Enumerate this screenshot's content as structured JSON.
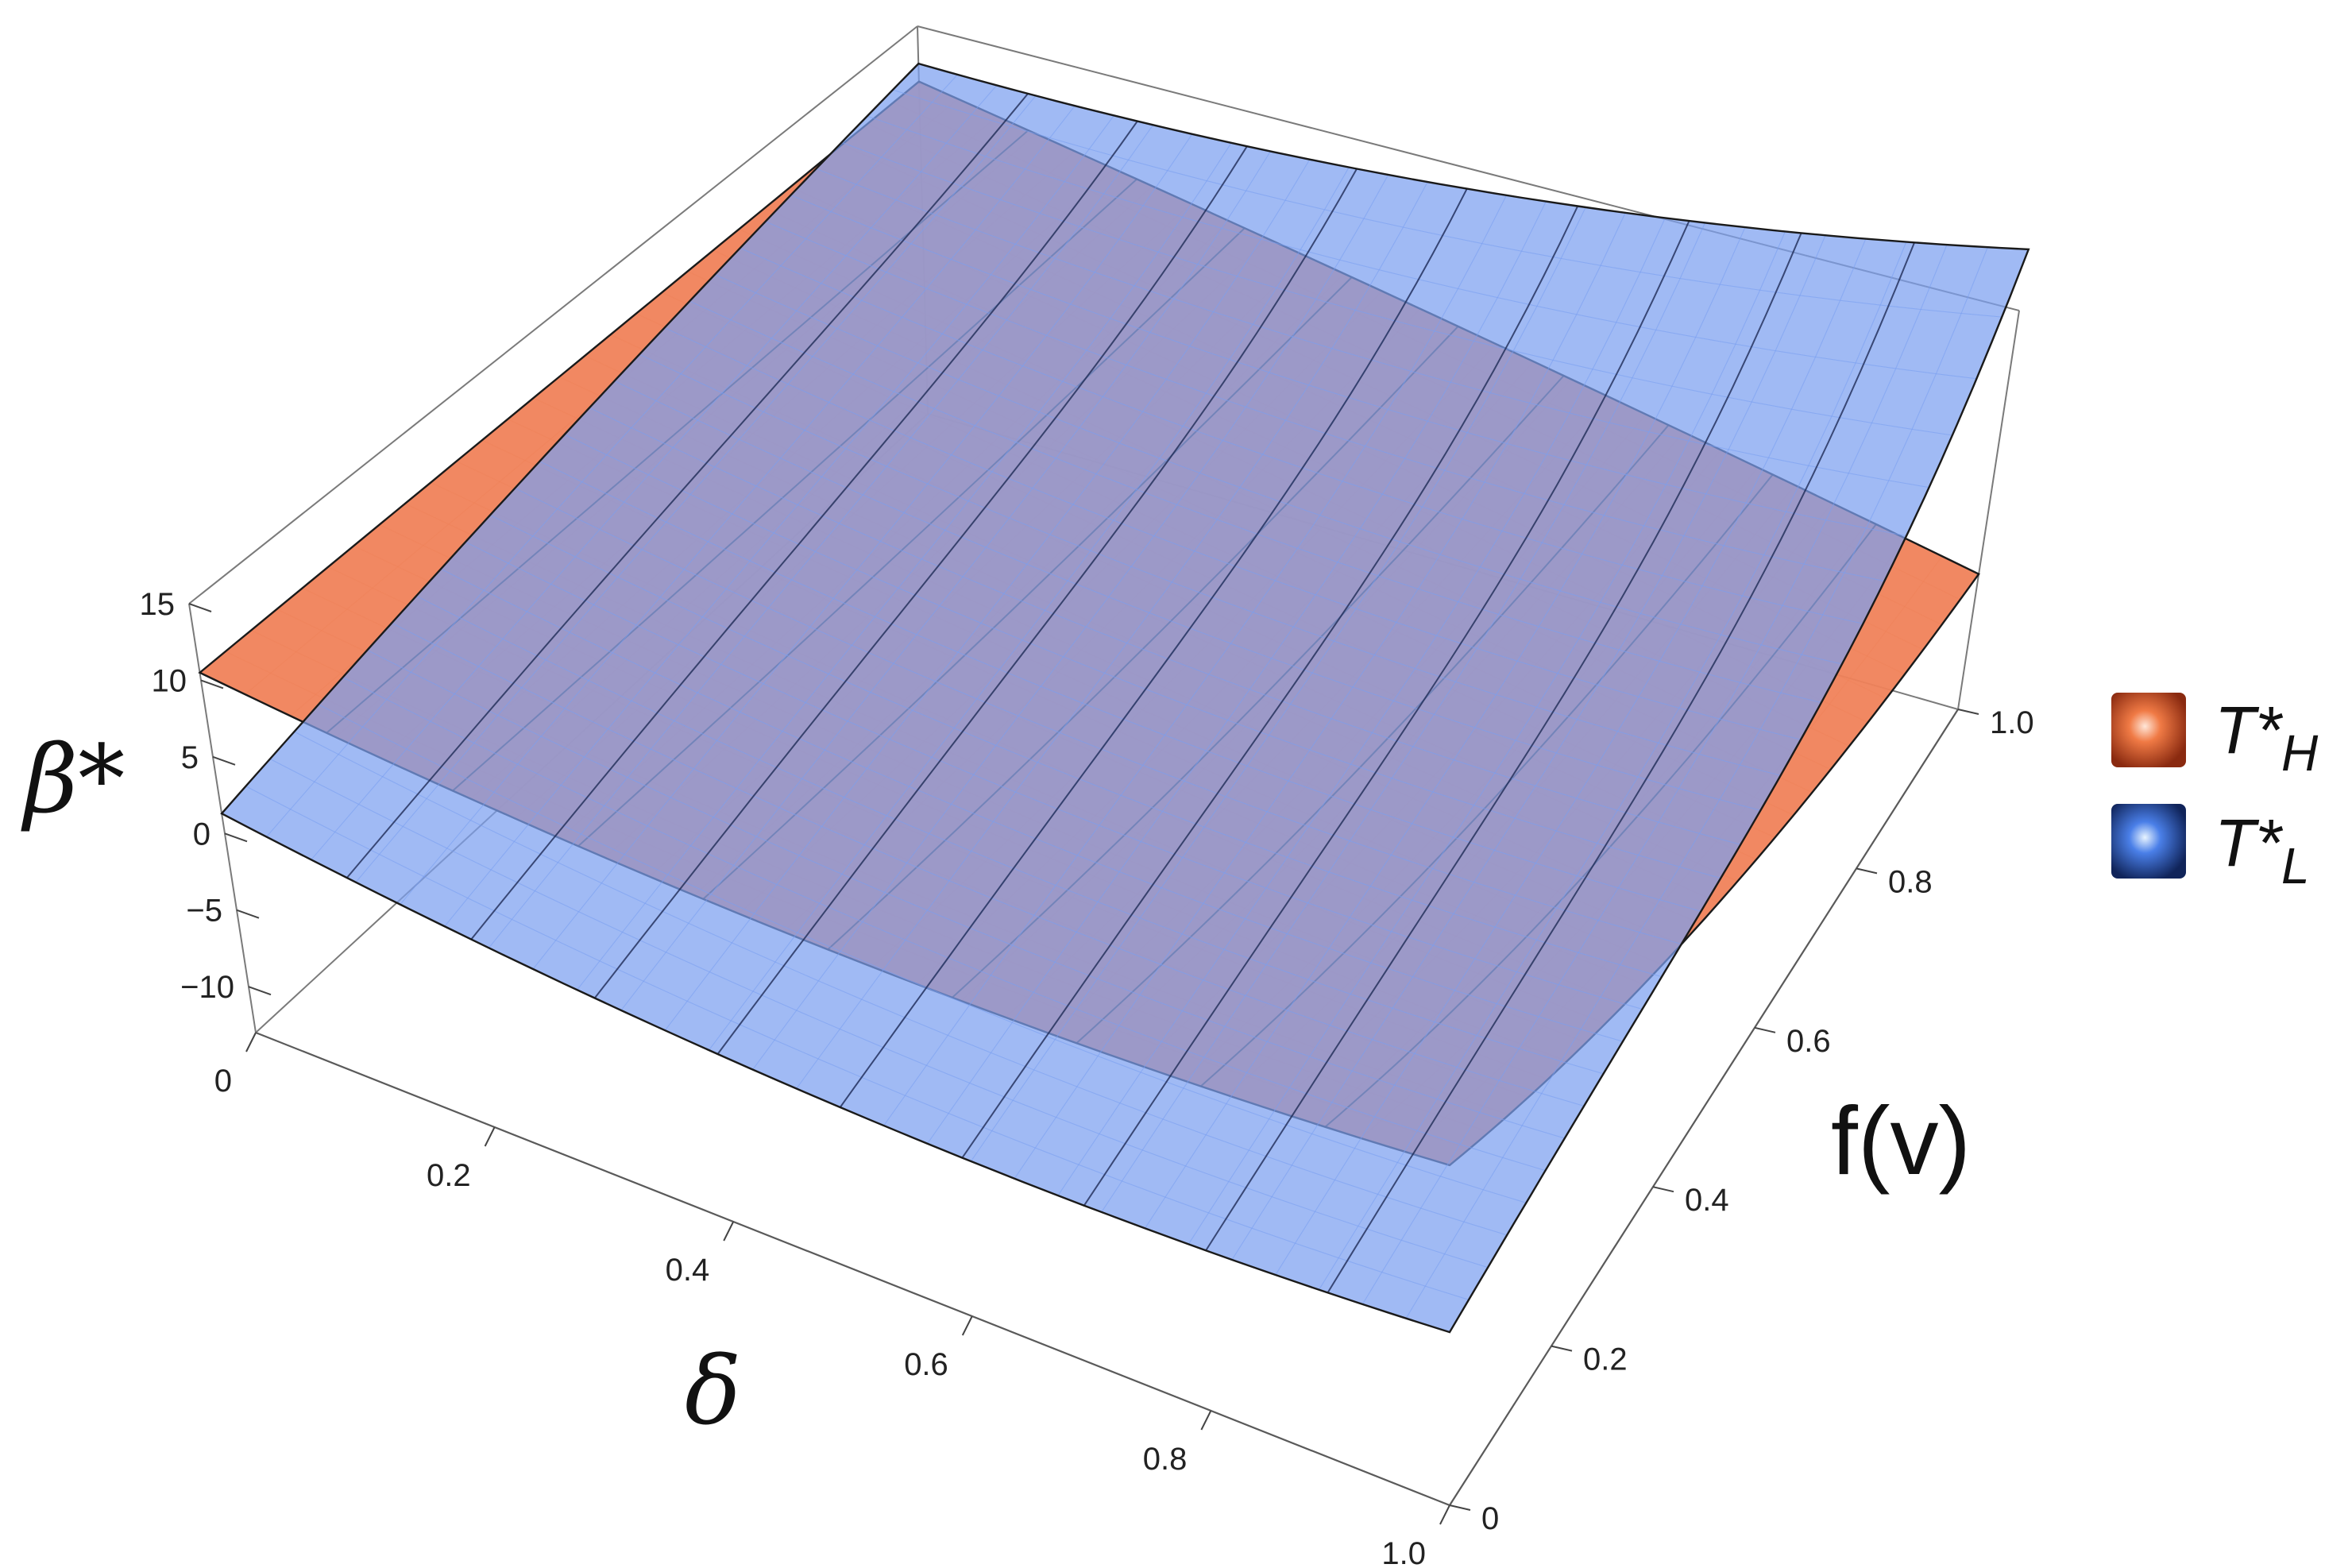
{
  "chart_data": {
    "type": "surface3d",
    "x_axis": {
      "label": "δ",
      "ticks": [
        "0",
        "0.2",
        "0.4",
        "0.6",
        "0.8",
        "1.0"
      ],
      "range": [
        0,
        1
      ]
    },
    "y_axis": {
      "label": "f(v)",
      "ticks": [
        "0",
        "0.2",
        "0.4",
        "0.6",
        "0.8",
        "1.0"
      ],
      "range": [
        0,
        1
      ]
    },
    "z_axis": {
      "label": "β*",
      "ticks": [
        "−10",
        "−5",
        "0",
        "5",
        "10",
        "15"
      ],
      "range": [
        -13,
        15
      ]
    },
    "legend": {
      "placement": "right"
    },
    "series": [
      {
        "name_main": "T*",
        "name_sub": "H",
        "color": "#f0825a",
        "edge_color": "#d06040"
      },
      {
        "name_main": "T*",
        "name_sub": "L",
        "color": "#7c9ff0",
        "edge_color": "#4a6fd0"
      }
    ]
  }
}
